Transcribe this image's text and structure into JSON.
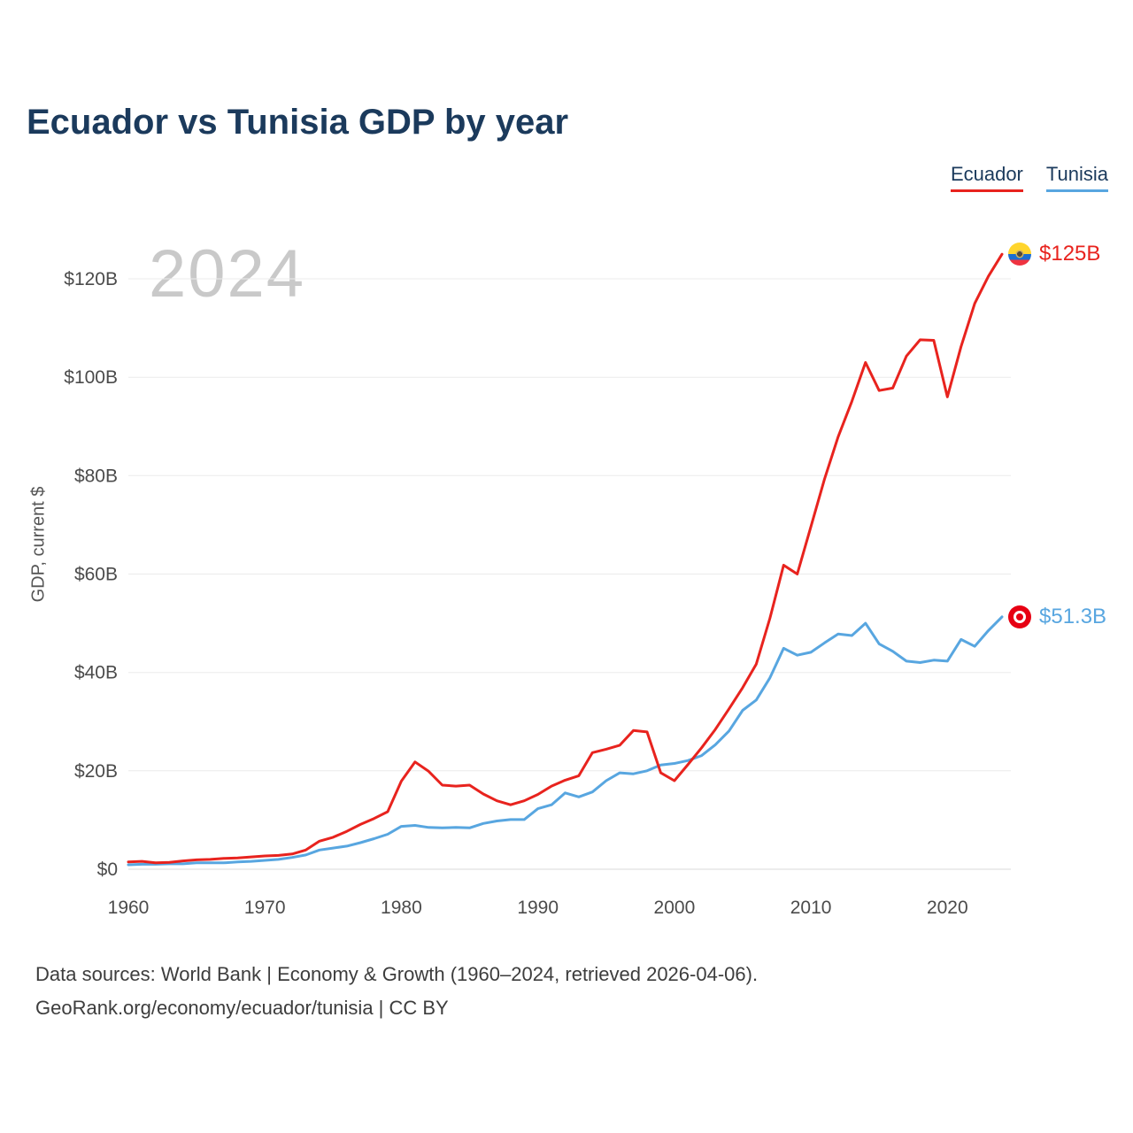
{
  "header": {
    "title": "Ecuador vs Tunisia GDP by year"
  },
  "legend": {
    "items": [
      {
        "label": "Ecuador",
        "color": "#e8231e"
      },
      {
        "label": "Tunisia",
        "color": "#58a6e0"
      }
    ]
  },
  "watermark": "2024",
  "chart_data": {
    "type": "line",
    "title": "Ecuador vs Tunisia GDP by year",
    "xlabel": "",
    "ylabel": "GDP, current $",
    "grid": true,
    "legend_position": "top-right",
    "ylim": [
      0,
      130
    ],
    "x": [
      1960,
      1961,
      1962,
      1963,
      1964,
      1965,
      1966,
      1967,
      1968,
      1969,
      1970,
      1971,
      1972,
      1973,
      1974,
      1975,
      1976,
      1977,
      1978,
      1979,
      1980,
      1981,
      1982,
      1983,
      1984,
      1985,
      1986,
      1987,
      1988,
      1989,
      1990,
      1991,
      1992,
      1993,
      1994,
      1995,
      1996,
      1997,
      1998,
      1999,
      2000,
      2001,
      2002,
      2003,
      2004,
      2005,
      2006,
      2007,
      2008,
      2009,
      2010,
      2011,
      2012,
      2013,
      2014,
      2015,
      2016,
      2017,
      2018,
      2019,
      2020,
      2021,
      2022,
      2023,
      2024
    ],
    "series": [
      {
        "name": "Ecuador",
        "color": "#e8231e",
        "end_label": "$125B",
        "end_value": 125.0,
        "values": [
          1.5,
          1.6,
          1.3,
          1.4,
          1.7,
          1.9,
          2.0,
          2.2,
          2.3,
          2.5,
          2.7,
          2.8,
          3.1,
          3.9,
          5.7,
          6.5,
          7.7,
          9.1,
          10.3,
          11.7,
          17.9,
          21.8,
          19.9,
          17.1,
          16.9,
          17.1,
          15.3,
          13.9,
          13.1,
          13.9,
          15.2,
          16.9,
          18.1,
          19.0,
          23.7,
          24.4,
          25.2,
          28.2,
          27.9,
          19.6,
          18.0,
          21.3,
          24.7,
          28.4,
          32.6,
          36.9,
          41.7,
          51.0,
          61.8,
          60.0,
          69.6,
          79.3,
          87.9,
          95.1,
          103.0,
          97.3,
          97.8,
          104.3,
          107.6,
          107.5,
          96.0,
          106.2,
          115.0,
          120.5,
          125.0
        ]
      },
      {
        "name": "Tunisia",
        "color": "#58a6e0",
        "end_label": "$51.3B",
        "end_value": 51.3,
        "values": [
          0.9,
          1.0,
          1.0,
          1.1,
          1.1,
          1.3,
          1.3,
          1.3,
          1.5,
          1.6,
          1.8,
          2.0,
          2.4,
          2.9,
          3.9,
          4.3,
          4.7,
          5.4,
          6.2,
          7.1,
          8.7,
          8.9,
          8.5,
          8.4,
          8.5,
          8.4,
          9.3,
          9.8,
          10.1,
          10.1,
          12.3,
          13.1,
          15.5,
          14.7,
          15.7,
          18.0,
          19.6,
          19.4,
          20.0,
          21.2,
          21.5,
          22.1,
          23.1,
          25.3,
          28.1,
          32.3,
          34.4,
          38.9,
          44.9,
          43.5,
          44.1,
          46.0,
          47.8,
          47.5,
          50.0,
          45.8,
          44.3,
          42.3,
          42.0,
          42.5,
          42.3,
          46.7,
          45.3,
          48.5,
          51.3
        ]
      }
    ],
    "yticks": {
      "values": [
        0,
        20,
        40,
        60,
        80,
        100,
        120
      ],
      "labels": [
        "$0",
        "$20B",
        "$40B",
        "$60B",
        "$80B",
        "$100B",
        "$120B"
      ]
    },
    "xticks": {
      "values": [
        1960,
        1970,
        1980,
        1990,
        2000,
        2010,
        2020
      ],
      "labels": [
        "1960",
        "1970",
        "1980",
        "1990",
        "2000",
        "2010",
        "2020"
      ]
    }
  },
  "footer": {
    "line1": "Data sources: World Bank | Economy & Growth (1960–2024, retrieved 2026-04-06).",
    "line2": "GeoRank.org/economy/ecuador/tunisia | CC BY"
  }
}
